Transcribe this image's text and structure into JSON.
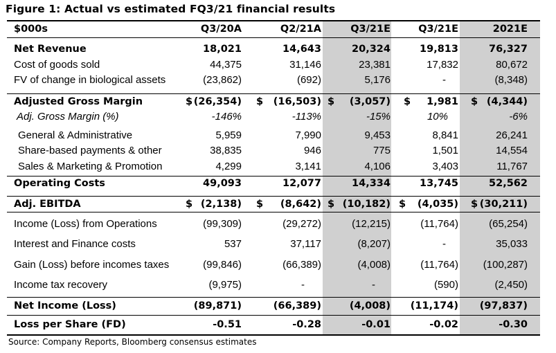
{
  "title": "Figure 1: Actual vs estimated FQ3/21 financial results",
  "header": {
    "label": "$000s",
    "cols": [
      "Q3/20A",
      "Q2/21A",
      "Q3/21E",
      "Q3/21E",
      "2021E"
    ]
  },
  "rows": [
    {
      "label": "Net Revenue",
      "v": [
        "18,021",
        "14,643",
        "20,324",
        "19,813",
        "76,327"
      ]
    },
    {
      "label": "Cost of goods sold",
      "v": [
        "44,375",
        "31,146",
        "23,381",
        "17,832",
        "80,672"
      ]
    },
    {
      "label": "FV of change in biological assets",
      "v": [
        "(23,862)",
        "(692)",
        "5,176",
        "-",
        "(8,348)"
      ]
    },
    {
      "label": "Adjusted Gross Margin",
      "v": [
        "(26,354)",
        "(16,503)",
        "(3,057)",
        "1,981",
        "(4,344)"
      ]
    },
    {
      "label": "Adj. Gross Margin (%)",
      "v": [
        "-146%",
        "-113%",
        "-15%",
        "10%",
        "-6%"
      ]
    },
    {
      "label": "General & Administrative",
      "v": [
        "5,959",
        "7,990",
        "9,453",
        "8,841",
        "26,241"
      ]
    },
    {
      "label": "Share-based payments & other",
      "v": [
        "38,835",
        "946",
        "775",
        "1,501",
        "14,554"
      ]
    },
    {
      "label": "Sales & Marketing & Promotion",
      "v": [
        "4,299",
        "3,141",
        "4,106",
        "3,403",
        "11,767"
      ]
    },
    {
      "label": "Operating Costs",
      "v": [
        "49,093",
        "12,077",
        "14,334",
        "13,745",
        "52,562"
      ]
    },
    {
      "label": "Adj. EBITDA",
      "v": [
        "(2,138)",
        "(8,642)",
        "(10,182)",
        "(4,035)",
        "(30,211)"
      ]
    },
    {
      "label": "Income (Loss) from Operations",
      "v": [
        "(99,309)",
        "(29,272)",
        "(12,215)",
        "(11,764)",
        "(65,254)"
      ]
    },
    {
      "label": "Interest and Finance costs",
      "v": [
        "537",
        "37,117",
        "(8,207)",
        "-",
        "35,033"
      ]
    },
    {
      "label": "Gain (Loss) before incomes taxes",
      "v": [
        "(99,846)",
        "(66,389)",
        "(4,008)",
        "(11,764)",
        "(100,287)"
      ]
    },
    {
      "label": "Income tax recovery",
      "v": [
        "(9,975)",
        "-",
        "-",
        "(590)",
        "(2,450)"
      ]
    },
    {
      "label": "Net Income (Loss)",
      "v": [
        "(89,871)",
        "(66,389)",
        "(4,008)",
        "(11,174)",
        "(97,837)"
      ]
    },
    {
      "label": "Loss per Share (FD)",
      "v": [
        "-0.51",
        "-0.28",
        "-0.01",
        "-0.02",
        "-0.30"
      ]
    }
  ],
  "currency_symbol": "$",
  "source": "Source: Company Reports, Bloomberg consensus estimates",
  "colors": {
    "shade": "#d0d0d0",
    "rule": "#000000"
  }
}
